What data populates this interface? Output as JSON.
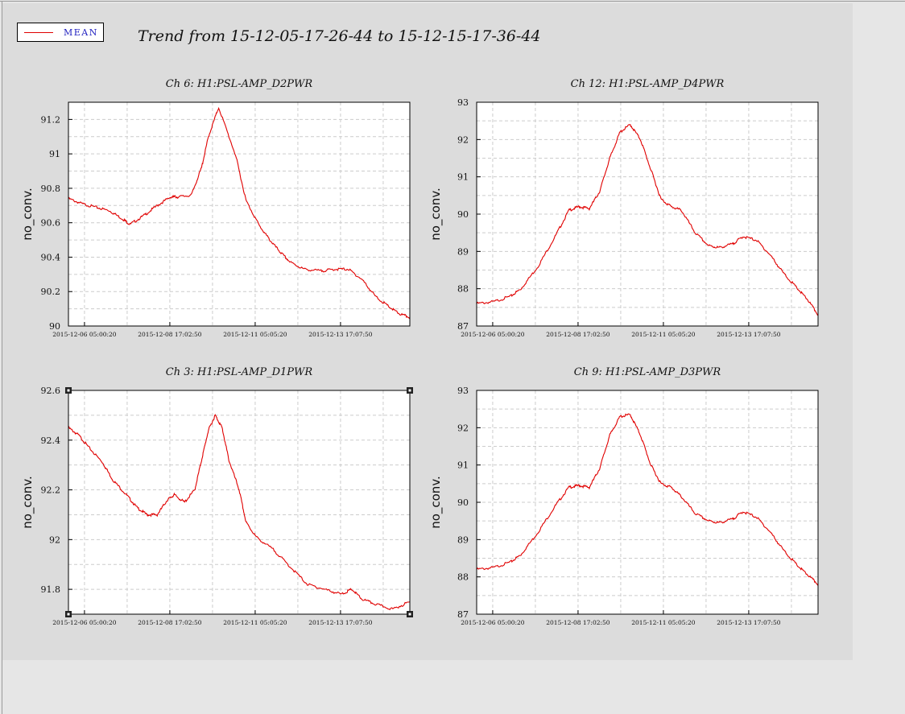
{
  "header": {
    "title": "Trend from 15-12-05-17-26-44 to 15-12-15-17-36-44"
  },
  "legend": {
    "label": "MEAN",
    "color": "#e00000"
  },
  "colors": {
    "series": "#e00000",
    "plot_bg": "#ffffff",
    "grid": "#cccccc",
    "panel_bg": "#dcdcdc"
  },
  "chart_data": [
    {
      "type": "line",
      "title": "Ch 6: H1:PSL-AMP_D2PWR",
      "ylabel": "no_conv.",
      "xlabel": "",
      "x_ticks": [
        "2015-12-06 05:00:20",
        "2015-12-08 17:02:50",
        "2015-12-11 05:05:20",
        "2015-12-13 17:07:50"
      ],
      "x_range": [
        "2015-12-05 17:26:44",
        "2015-12-15 17:36:44"
      ],
      "ylim": [
        90,
        91.3
      ],
      "y_ticks": [
        90,
        90.2,
        90.4,
        90.6,
        90.8,
        91,
        91.2
      ],
      "grid": true,
      "series": [
        {
          "x": [
            0,
            0.4,
            0.8,
            1.2,
            1.6,
            1.8,
            2.2,
            2.6,
            3.0,
            3.2,
            3.6,
            3.9,
            4.1,
            4.4,
            4.9,
            5.2,
            5.6,
            5.9,
            6.2,
            6.5,
            6.9,
            7.4,
            7.8,
            8.2,
            8.6,
            9.0,
            9.4,
            9.7,
            10.0
          ],
          "values": [
            90.74,
            90.71,
            90.69,
            90.67,
            90.62,
            90.59,
            90.64,
            90.7,
            90.75,
            90.75,
            90.76,
            90.92,
            91.1,
            91.27,
            90.99,
            90.73,
            90.58,
            90.5,
            90.43,
            90.37,
            90.33,
            90.32,
            90.33,
            90.33,
            90.27,
            90.17,
            90.11,
            90.07,
            90.05
          ]
        }
      ]
    },
    {
      "type": "line",
      "title": "Ch 12: H1:PSL-AMP_D4PWR",
      "ylabel": "no_conv.",
      "xlabel": "",
      "x_ticks": [
        "2015-12-06 05:00:20",
        "2015-12-08 17:02:50",
        "2015-12-11 05:05:20",
        "2015-12-13 17:07:50"
      ],
      "x_range": [
        "2015-12-05 17:26:44",
        "2015-12-15 17:36:44"
      ],
      "ylim": [
        87,
        93
      ],
      "y_ticks": [
        87,
        88,
        89,
        90,
        91,
        92,
        93
      ],
      "grid": true,
      "series": [
        {
          "x": [
            0,
            0.5,
            1.0,
            1.3,
            1.8,
            2.3,
            2.7,
            3.0,
            3.3,
            3.6,
            3.9,
            4.2,
            4.5,
            4.8,
            5.1,
            5.4,
            5.7,
            6.0,
            6.4,
            6.8,
            7.1,
            7.5,
            7.8,
            8.2,
            8.6,
            9.0,
            9.4,
            9.7,
            10.0
          ],
          "values": [
            87.6,
            87.65,
            87.8,
            88.0,
            88.6,
            89.4,
            90.1,
            90.2,
            90.15,
            90.6,
            91.5,
            92.2,
            92.4,
            92.0,
            91.2,
            90.4,
            90.2,
            90.1,
            89.5,
            89.15,
            89.1,
            89.2,
            89.4,
            89.3,
            88.9,
            88.4,
            88.0,
            87.7,
            87.3
          ]
        }
      ]
    },
    {
      "type": "line",
      "title": "Ch 3: H1:PSL-AMP_D1PWR",
      "ylabel": "no_conv.",
      "xlabel": "",
      "x_ticks": [
        "2015-12-06 05:00:20",
        "2015-12-08 17:02:50",
        "2015-12-11 05:05:20",
        "2015-12-13 17:07:50"
      ],
      "x_range": [
        "2015-12-05 17:26:44",
        "2015-12-15 17:36:44"
      ],
      "ylim": [
        91.7,
        92.6
      ],
      "y_ticks": [
        91.8,
        92,
        92.2,
        92.4,
        92.6
      ],
      "grid": true,
      "series": [
        {
          "x": [
            0,
            0.3,
            0.6,
            1.0,
            1.3,
            1.7,
            2.0,
            2.3,
            2.6,
            2.9,
            3.1,
            3.4,
            3.7,
            3.9,
            4.1,
            4.3,
            4.5,
            4.7,
            5.0,
            5.2,
            5.5,
            6.0,
            6.5,
            7.0,
            7.5,
            8.0,
            8.3,
            8.6,
            9.0,
            9.5,
            10.0
          ],
          "values": [
            92.45,
            92.42,
            92.37,
            92.31,
            92.24,
            92.18,
            92.13,
            92.1,
            92.1,
            92.16,
            92.18,
            92.15,
            92.2,
            92.32,
            92.44,
            92.5,
            92.45,
            92.32,
            92.2,
            92.07,
            92.01,
            91.96,
            91.89,
            91.82,
            91.8,
            91.78,
            91.8,
            91.76,
            91.74,
            91.72,
            91.75
          ]
        }
      ]
    },
    {
      "type": "line",
      "title": "Ch 9: H1:PSL-AMP_D3PWR",
      "ylabel": "no_conv.",
      "xlabel": "",
      "x_ticks": [
        "2015-12-06 05:00:20",
        "2015-12-08 17:02:50",
        "2015-12-11 05:05:20",
        "2015-12-13 17:07:50"
      ],
      "x_range": [
        "2015-12-05 17:26:44",
        "2015-12-15 17:36:44"
      ],
      "ylim": [
        87,
        93
      ],
      "y_ticks": [
        87,
        88,
        89,
        90,
        91,
        92,
        93
      ],
      "grid": true,
      "series": [
        {
          "x": [
            0,
            0.5,
            1.0,
            1.3,
            1.8,
            2.3,
            2.7,
            3.0,
            3.3,
            3.6,
            3.9,
            4.2,
            4.5,
            4.8,
            5.1,
            5.4,
            5.7,
            6.0,
            6.4,
            6.8,
            7.1,
            7.5,
            7.8,
            8.2,
            8.6,
            9.0,
            9.4,
            9.7,
            10.0
          ],
          "values": [
            88.2,
            88.25,
            88.4,
            88.6,
            89.2,
            89.9,
            90.4,
            90.45,
            90.4,
            90.9,
            91.8,
            92.3,
            92.35,
            91.8,
            91.0,
            90.5,
            90.4,
            90.15,
            89.7,
            89.5,
            89.45,
            89.55,
            89.75,
            89.6,
            89.2,
            88.7,
            88.3,
            88.05,
            87.8
          ]
        }
      ]
    }
  ]
}
